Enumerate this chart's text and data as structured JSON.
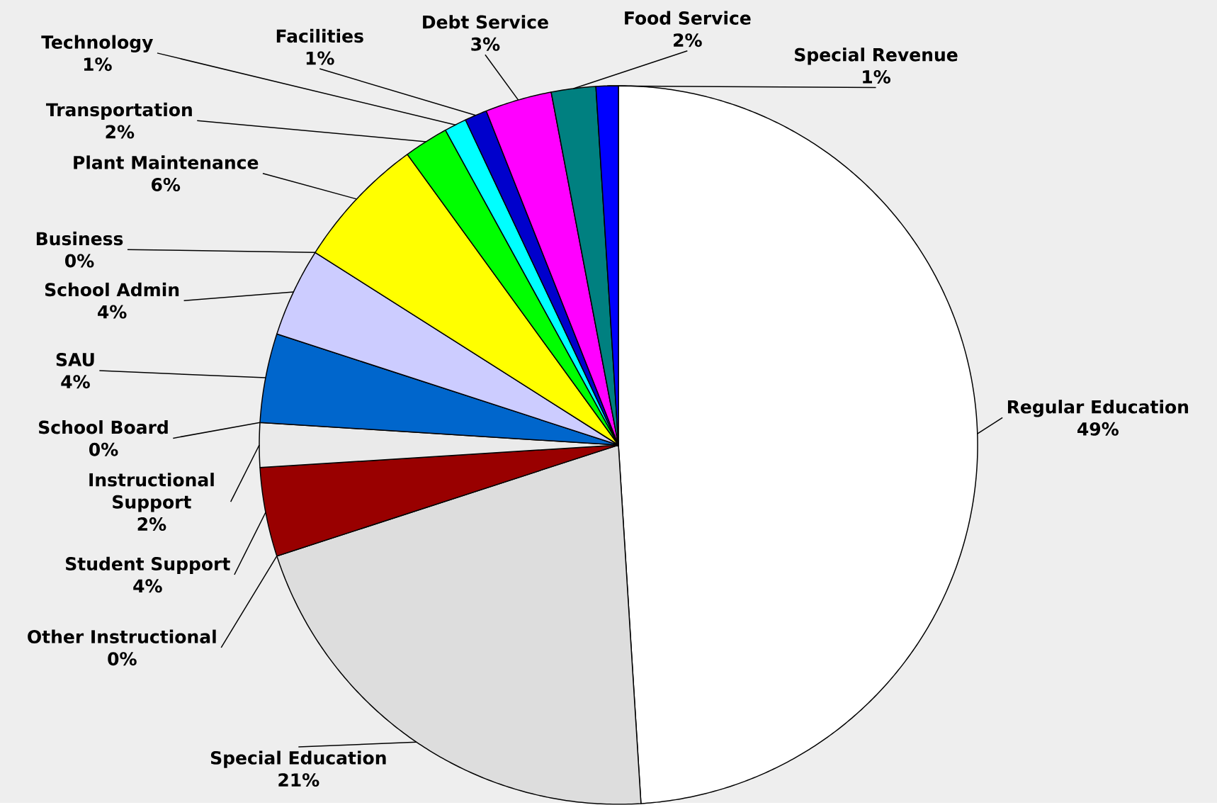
{
  "chart_data": {
    "type": "pie",
    "categories": [
      "Regular Education",
      "Special Education",
      "Other Instructional",
      "Student Support",
      "Instructional Support",
      "School Board",
      "SAU",
      "School Admin",
      "Business",
      "Plant Maintenance",
      "Transportation",
      "Technology",
      "Facilities",
      "Debt Service",
      "Food Service",
      "Special Revenue"
    ],
    "values": [
      49,
      21,
      0,
      4,
      2,
      0,
      4,
      4,
      0,
      6,
      2,
      1,
      1,
      3,
      2,
      1
    ],
    "value_labels": [
      "49%",
      "21%",
      "0%",
      "4%",
      "2%",
      "0%",
      "4%",
      "4%",
      "0%",
      "6%",
      "2%",
      "1%",
      "1%",
      "3%",
      "2%",
      "1%"
    ],
    "colors": [
      "#ffffff",
      "#dddddd",
      "#336699",
      "#990000",
      "#eaeaea",
      "#003366",
      "#0066cc",
      "#ccccff",
      "#ffffcc",
      "#ffff00",
      "#00ff00",
      "#00ffff",
      "#0000cc",
      "#ff00ff",
      "#008080",
      "#0000ff"
    ]
  }
}
